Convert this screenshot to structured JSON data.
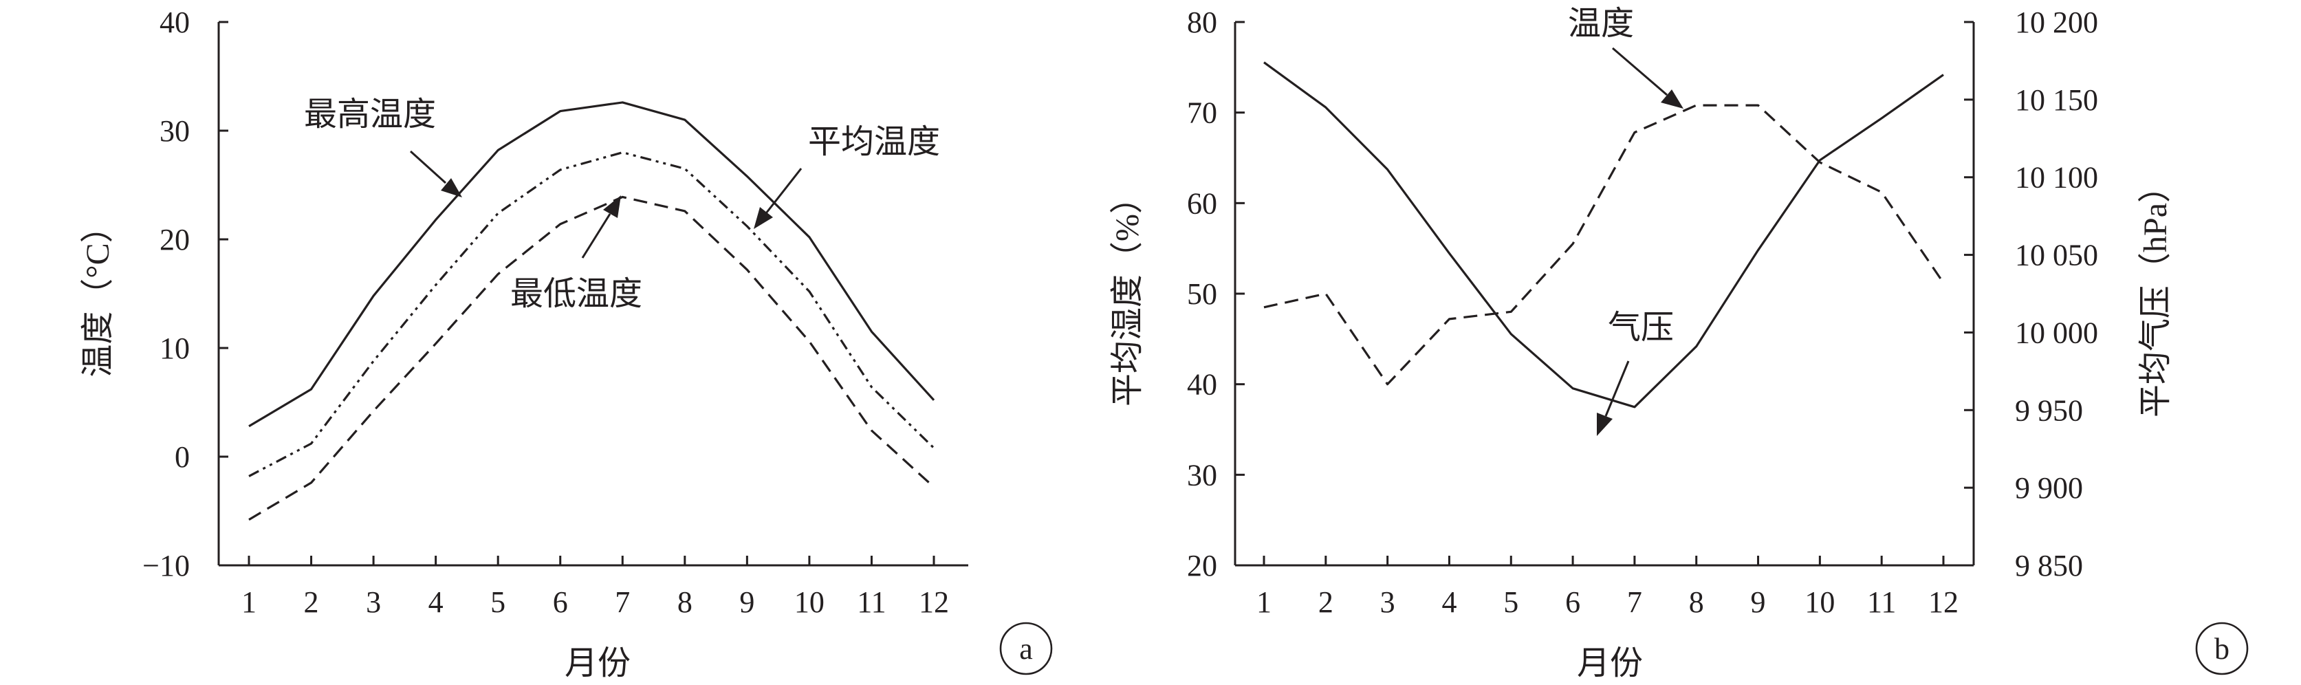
{
  "chart_data": [
    {
      "type": "line",
      "panel_label": "a",
      "xlabel": "月份",
      "ylabel": "温度（°C）",
      "categories": [
        1,
        2,
        3,
        4,
        5,
        6,
        7,
        8,
        9,
        10,
        11,
        12
      ],
      "x_tick_labels": [
        "1",
        "2",
        "3",
        "4",
        "5",
        "6",
        "7",
        "8",
        "9",
        "10",
        "11",
        "12"
      ],
      "ylim": [
        -10,
        40
      ],
      "y_tick_labels": [
        "−10",
        "0",
        "10",
        "20",
        "30",
        "40"
      ],
      "grid": false,
      "series": [
        {
          "name": "最高温度",
          "style": "solid",
          "values": [
            2.8,
            6.2,
            14.8,
            21.8,
            28.2,
            31.8,
            32.6,
            31.0,
            25.8,
            20.2,
            11.5,
            5.2
          ]
        },
        {
          "name": "平均温度",
          "style": "dash-dot-dot",
          "values": [
            -1.8,
            1.2,
            8.8,
            15.8,
            22.4,
            26.4,
            28.0,
            26.5,
            21.2,
            15.2,
            6.4,
            0.8
          ]
        },
        {
          "name": "最低温度",
          "style": "dashed",
          "values": [
            -5.8,
            -2.4,
            4.2,
            10.4,
            16.8,
            21.4,
            23.9,
            22.6,
            17.2,
            10.6,
            2.4,
            -2.8
          ]
        }
      ]
    },
    {
      "type": "line",
      "panel_label": "b",
      "xlabel": "月份",
      "ylabel": "平均湿度（%）",
      "y2label": "平均气压（hPa）",
      "categories": [
        1,
        2,
        3,
        4,
        5,
        6,
        7,
        8,
        9,
        10,
        11,
        12
      ],
      "x_tick_labels": [
        "1",
        "2",
        "3",
        "4",
        "5",
        "6",
        "7",
        "8",
        "9",
        "10",
        "11",
        "12"
      ],
      "ylim": [
        20,
        80
      ],
      "y_tick_labels": [
        "20",
        "30",
        "40",
        "50",
        "60",
        "70",
        "80"
      ],
      "y2lim": [
        9850,
        10200
      ],
      "y2_tick_labels": [
        "9 850",
        "9 900",
        "9 950",
        "10 000",
        "10 050",
        "10 100",
        "10 150",
        "10 200"
      ],
      "grid": false,
      "series": [
        {
          "name": "温度",
          "axis": "left",
          "style": "dashed",
          "values": [
            48.5,
            50.0,
            40.0,
            47.2,
            48.0,
            55.5,
            67.8,
            70.8,
            70.8,
            64.5,
            61.2,
            51.2
          ]
        },
        {
          "name": "气压",
          "axis": "right",
          "style": "solid",
          "values": [
            10174,
            10145,
            10105,
            10051,
            9999,
            9964,
            9952,
            9991,
            10053,
            10111,
            10138,
            10166
          ]
        }
      ]
    }
  ]
}
